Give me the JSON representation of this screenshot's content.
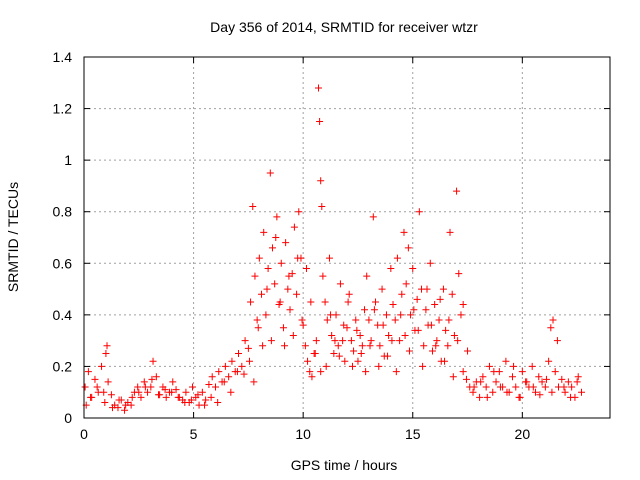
{
  "chart_data": {
    "type": "scatter",
    "title": "Day 356 of 2014, SRMTID for receiver wtzr",
    "xlabel": "GPS time / hours",
    "ylabel": "SRMTID / TECUs",
    "xlim": [
      0,
      24
    ],
    "ylim": [
      0,
      1.4
    ],
    "x_ticks": [
      0,
      5,
      10,
      15,
      20
    ],
    "x_tick_labels": [
      "0",
      "5",
      "10",
      "15",
      "20"
    ],
    "y_ticks": [
      0,
      0.2,
      0.4,
      0.6,
      0.8,
      1.0,
      1.2,
      1.4
    ],
    "y_tick_labels": [
      "0",
      "0.2",
      "0.4",
      "0.6",
      "0.8",
      "1",
      "1.2",
      "1.4"
    ],
    "grid": true,
    "marker": "+",
    "marker_color": "#ff0000",
    "series": [
      {
        "name": "SRMTID",
        "x": [
          0.05,
          0.2,
          0.35,
          0.5,
          0.65,
          0.8,
          0.95,
          1.05,
          1.1,
          1.25,
          1.4,
          1.55,
          1.7,
          1.85,
          2.0,
          2.15,
          2.3,
          2.45,
          2.6,
          2.75,
          2.9,
          3.05,
          3.15,
          3.3,
          3.45,
          3.6,
          3.75,
          3.9,
          4.05,
          4.2,
          4.35,
          4.5,
          4.65,
          4.8,
          4.95,
          5.1,
          5.25,
          5.4,
          5.55,
          5.7,
          5.85,
          6.0,
          6.15,
          6.3,
          6.45,
          6.6,
          6.75,
          6.9,
          7.05,
          7.2,
          7.35,
          7.5,
          7.6,
          7.7,
          7.8,
          7.9,
          8.0,
          8.1,
          8.2,
          8.3,
          8.4,
          8.5,
          8.6,
          8.7,
          8.8,
          8.9,
          9.0,
          9.1,
          9.2,
          9.3,
          9.4,
          9.5,
          9.6,
          9.7,
          9.8,
          9.9,
          10.0,
          10.1,
          10.2,
          10.3,
          10.4,
          10.5,
          10.6,
          10.7,
          10.75,
          10.8,
          10.85,
          10.9,
          11.0,
          11.1,
          11.2,
          11.3,
          11.4,
          11.5,
          11.6,
          11.7,
          11.8,
          11.9,
          12.0,
          12.1,
          12.2,
          12.3,
          12.4,
          12.5,
          12.6,
          12.7,
          12.8,
          12.9,
          13.0,
          13.1,
          13.2,
          13.3,
          13.4,
          13.5,
          13.6,
          13.7,
          13.8,
          13.9,
          14.0,
          14.1,
          14.2,
          14.3,
          14.4,
          14.5,
          14.6,
          14.7,
          14.8,
          14.9,
          15.0,
          15.1,
          15.2,
          15.3,
          15.4,
          15.5,
          15.6,
          15.7,
          15.8,
          15.9,
          16.0,
          16.1,
          16.2,
          16.3,
          16.4,
          16.5,
          16.6,
          16.7,
          16.8,
          16.9,
          17.0,
          17.1,
          17.2,
          17.3,
          17.45,
          17.6,
          17.75,
          17.9,
          18.05,
          18.2,
          18.35,
          18.5,
          18.65,
          18.8,
          18.95,
          19.1,
          19.25,
          19.4,
          19.55,
          19.7,
          19.85,
          20.0,
          20.15,
          20.3,
          20.45,
          20.6,
          20.75,
          20.9,
          21.05,
          21.2,
          21.3,
          21.4,
          21.5,
          21.65,
          21.8,
          21.95,
          22.1,
          22.25,
          22.4,
          22.55,
          22.7,
          0.1,
          0.3,
          0.6,
          0.9,
          1.0,
          1.3,
          1.6,
          1.9,
          2.2,
          2.5,
          2.8,
          3.1,
          3.4,
          3.7,
          4.0,
          4.3,
          4.6,
          4.9,
          5.2,
          5.5,
          5.8,
          6.1,
          6.4,
          6.7,
          7.0,
          7.3,
          7.55,
          7.75,
          7.95,
          8.15,
          8.35,
          8.55,
          8.75,
          8.95,
          9.15,
          9.35,
          9.55,
          9.75,
          9.95,
          10.15,
          10.35,
          10.55,
          10.8,
          11.05,
          11.25,
          11.45,
          11.65,
          11.85,
          12.05,
          12.25,
          12.45,
          12.65,
          12.85,
          13.05,
          13.25,
          13.45,
          13.65,
          13.85,
          14.05,
          14.25,
          14.45,
          14.65,
          14.85,
          15.05,
          15.25,
          15.45,
          15.65,
          15.85,
          16.05,
          16.25,
          16.45,
          16.65,
          16.85,
          17.05,
          17.3,
          17.5,
          17.8,
          18.1,
          18.4,
          18.7,
          19.0,
          19.3,
          19.6,
          19.9,
          20.2,
          20.5,
          20.8,
          21.1,
          21.35,
          21.6,
          21.9,
          22.2,
          22.5
        ],
        "y": [
          0.12,
          0.18,
          0.08,
          0.15,
          0.1,
          0.2,
          0.06,
          0.28,
          0.14,
          0.09,
          0.05,
          0.04,
          0.07,
          0.03,
          0.06,
          0.05,
          0.1,
          0.12,
          0.08,
          0.14,
          0.1,
          0.12,
          0.22,
          0.16,
          0.09,
          0.12,
          0.08,
          0.1,
          0.14,
          0.11,
          0.08,
          0.07,
          0.1,
          0.06,
          0.12,
          0.08,
          0.05,
          0.1,
          0.07,
          0.13,
          0.16,
          0.12,
          0.18,
          0.14,
          0.2,
          0.16,
          0.22,
          0.18,
          0.25,
          0.2,
          0.3,
          0.27,
          0.45,
          0.82,
          0.55,
          0.38,
          0.62,
          0.48,
          0.72,
          0.4,
          0.58,
          0.95,
          0.66,
          0.52,
          0.78,
          0.44,
          0.6,
          0.35,
          0.68,
          0.5,
          0.42,
          0.56,
          0.74,
          0.48,
          0.8,
          0.62,
          0.36,
          0.28,
          0.22,
          0.18,
          0.16,
          0.25,
          0.3,
          1.28,
          1.15,
          0.92,
          0.82,
          0.55,
          0.45,
          0.38,
          0.62,
          0.32,
          0.25,
          0.4,
          0.28,
          0.52,
          0.3,
          0.22,
          0.35,
          0.48,
          0.3,
          0.26,
          0.38,
          0.22,
          0.32,
          0.28,
          0.42,
          0.55,
          0.38,
          0.3,
          0.78,
          0.45,
          0.36,
          0.28,
          0.5,
          0.24,
          0.4,
          0.32,
          0.58,
          0.44,
          0.38,
          0.62,
          0.3,
          0.48,
          0.72,
          0.52,
          0.66,
          0.4,
          0.58,
          0.34,
          0.46,
          0.8,
          0.5,
          0.28,
          0.42,
          0.36,
          0.6,
          0.26,
          0.44,
          0.3,
          0.38,
          0.22,
          0.5,
          0.34,
          0.28,
          0.72,
          0.48,
          0.32,
          0.88,
          0.56,
          0.4,
          0.18,
          0.15,
          0.12,
          0.1,
          0.14,
          0.08,
          0.16,
          0.12,
          0.2,
          0.1,
          0.14,
          0.18,
          0.12,
          0.22,
          0.1,
          0.16,
          0.12,
          0.08,
          0.18,
          0.14,
          0.12,
          0.2,
          0.1,
          0.16,
          0.14,
          0.12,
          0.22,
          0.35,
          0.38,
          0.18,
          0.12,
          0.15,
          0.1,
          0.14,
          0.12,
          0.08,
          0.16,
          0.1,
          0.05,
          0.08,
          0.12,
          0.1,
          0.25,
          0.04,
          0.07,
          0.05,
          0.08,
          0.1,
          0.12,
          0.15,
          0.09,
          0.11,
          0.1,
          0.08,
          0.06,
          0.07,
          0.09,
          0.05,
          0.08,
          0.06,
          0.14,
          0.1,
          0.18,
          0.17,
          0.22,
          0.14,
          0.35,
          0.28,
          0.5,
          0.3,
          0.7,
          0.45,
          0.28,
          0.55,
          0.32,
          0.62,
          0.38,
          0.58,
          0.45,
          0.25,
          0.18,
          0.2,
          0.4,
          0.3,
          0.24,
          0.36,
          0.45,
          0.2,
          0.34,
          0.25,
          0.18,
          0.28,
          0.42,
          0.2,
          0.36,
          0.24,
          0.3,
          0.18,
          0.4,
          0.32,
          0.26,
          0.42,
          0.34,
          0.2,
          0.5,
          0.36,
          0.28,
          0.46,
          0.22,
          0.38,
          0.16,
          0.3,
          0.44,
          0.26,
          0.12,
          0.14,
          0.08,
          0.18,
          0.12,
          0.1,
          0.2,
          0.08,
          0.14,
          0.12,
          0.09,
          0.15,
          0.1,
          0.3,
          0.12,
          0.08,
          0.14
        ]
      }
    ]
  }
}
